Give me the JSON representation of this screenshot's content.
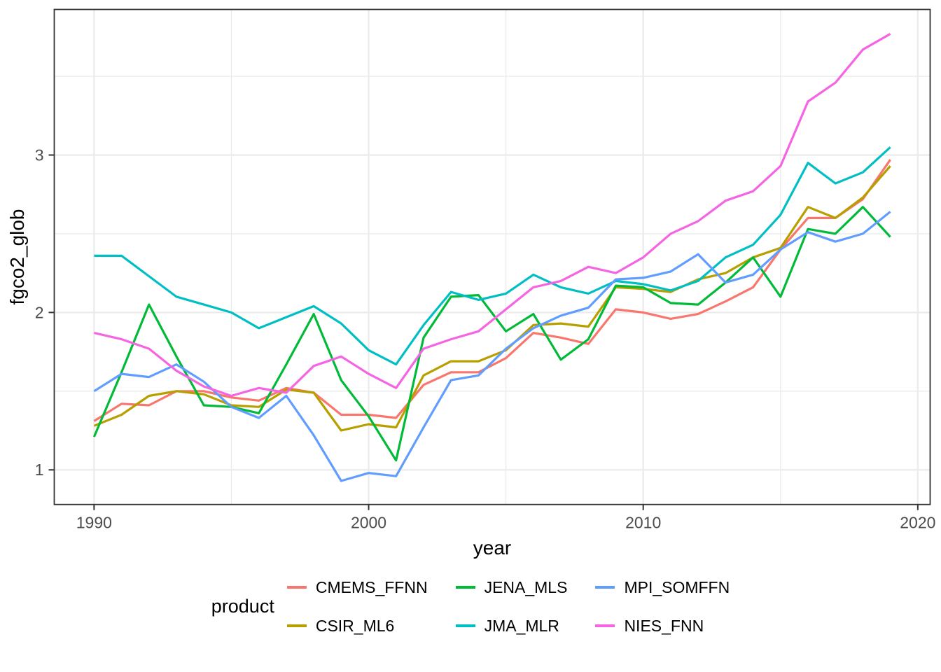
{
  "chart_data": {
    "type": "line",
    "title": "",
    "xlabel": "year",
    "ylabel": "fgco2_glob",
    "legend_title": "product",
    "legend_position": "bottom",
    "grid": true,
    "panel_background": "#FFFFFF",
    "grid_color": "#EBEBEB",
    "border_color": "#333333",
    "tick_color": "#333333",
    "axis_text_color": "#4D4D4D",
    "xlim": [
      1988.55,
      2020.45
    ],
    "ylim": [
      0.78,
      3.925
    ],
    "x_ticks": [
      1990,
      2000,
      2010,
      2020
    ],
    "x_tick_labels": [
      "1990",
      "2000",
      "2010",
      "2020"
    ],
    "x_minor_ticks": [
      1995,
      2005,
      2015
    ],
    "y_ticks": [
      1,
      2,
      3
    ],
    "y_tick_labels": [
      "1",
      "2",
      "3"
    ],
    "y_minor_ticks": [
      1.5,
      2.5,
      3.5
    ],
    "x": [
      1990,
      1991,
      1992,
      1993,
      1994,
      1995,
      1996,
      1997,
      1998,
      1999,
      2000,
      2001,
      2002,
      2003,
      2004,
      2005,
      2006,
      2007,
      2008,
      2009,
      2010,
      2011,
      2012,
      2013,
      2014,
      2015,
      2016,
      2017,
      2018,
      2019
    ],
    "series": [
      {
        "name": "CMEMS_FFNN",
        "color": "#F8766D",
        "values": [
          1.31,
          1.42,
          1.41,
          1.5,
          1.5,
          1.46,
          1.44,
          1.52,
          1.49,
          1.35,
          1.35,
          1.33,
          1.54,
          1.62,
          1.62,
          1.71,
          1.87,
          1.84,
          1.8,
          2.02,
          2.0,
          1.96,
          1.99,
          2.07,
          2.16,
          2.4,
          2.6,
          2.6,
          2.72,
          2.97
        ]
      },
      {
        "name": "CSIR_ML6",
        "color": "#B79F00",
        "values": [
          1.28,
          1.35,
          1.47,
          1.5,
          1.48,
          1.41,
          1.4,
          1.51,
          1.49,
          1.25,
          1.29,
          1.27,
          1.6,
          1.69,
          1.69,
          1.76,
          1.92,
          1.93,
          1.91,
          2.16,
          2.15,
          2.13,
          2.21,
          2.25,
          2.35,
          2.41,
          2.67,
          2.6,
          2.73,
          2.93
        ]
      },
      {
        "name": "JENA_MLS",
        "color": "#00BA38",
        "values": [
          1.21,
          1.62,
          2.05,
          1.72,
          1.41,
          1.4,
          1.36,
          1.67,
          1.99,
          1.57,
          1.34,
          1.06,
          1.84,
          2.1,
          2.11,
          1.88,
          1.99,
          1.7,
          1.83,
          2.17,
          2.16,
          2.06,
          2.05,
          2.19,
          2.35,
          2.1,
          2.53,
          2.5,
          2.67,
          2.48
        ]
      },
      {
        "name": "JMA_MLR",
        "color": "#00BFC4",
        "values": [
          2.36,
          2.36,
          2.23,
          2.1,
          2.05,
          2.0,
          1.9,
          1.97,
          2.04,
          1.93,
          1.76,
          1.67,
          1.92,
          2.13,
          2.08,
          2.12,
          2.24,
          2.16,
          2.12,
          2.2,
          2.18,
          2.14,
          2.2,
          2.35,
          2.43,
          2.62,
          2.95,
          2.82,
          2.89,
          3.05
        ]
      },
      {
        "name": "MPI_SOMFFN",
        "color": "#619CFF",
        "values": [
          1.5,
          1.61,
          1.59,
          1.67,
          1.56,
          1.4,
          1.33,
          1.47,
          1.22,
          0.93,
          0.98,
          0.96,
          1.27,
          1.57,
          1.6,
          1.77,
          1.9,
          1.98,
          2.03,
          2.21,
          2.22,
          2.26,
          2.37,
          2.19,
          2.24,
          2.4,
          2.51,
          2.45,
          2.5,
          2.64
        ]
      },
      {
        "name": "NIES_FNN",
        "color": "#F564E3",
        "values": [
          1.87,
          1.83,
          1.77,
          1.63,
          1.53,
          1.47,
          1.52,
          1.49,
          1.66,
          1.72,
          1.61,
          1.52,
          1.77,
          1.83,
          1.88,
          2.02,
          2.16,
          2.2,
          2.29,
          2.25,
          2.35,
          2.5,
          2.58,
          2.71,
          2.77,
          2.93,
          3.34,
          3.46,
          3.67,
          3.77
        ]
      }
    ]
  }
}
